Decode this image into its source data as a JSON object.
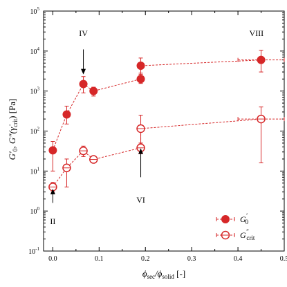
{
  "colors": {
    "series": "#d62728",
    "axis": "#000000"
  },
  "chart_data": {
    "type": "scatter",
    "title": "",
    "xlabel": "ϕsec/ϕsolid [-]",
    "ylabel": "G′0, G″(γ̇crit) [Pa]",
    "xlim": [
      -0.02,
      0.5
    ],
    "ylim": [
      0.1,
      100000
    ],
    "y_scale": "log",
    "grid": false,
    "legend_position": "bottom-right",
    "x_ticks": [
      0.0,
      0.1,
      0.2,
      0.3,
      0.4,
      0.5
    ],
    "x_tick_labels": [
      "0.0",
      "0.1",
      "0.2",
      "0.3",
      "0.4",
      "0.5"
    ],
    "y_ticks": [
      0.1,
      1,
      10,
      100,
      1000,
      10000,
      100000
    ],
    "y_tick_labels": [
      {
        "base": "10",
        "exp": "-1"
      },
      {
        "base": "10",
        "exp": "0"
      },
      {
        "base": "10",
        "exp": "1"
      },
      {
        "base": "10",
        "exp": "2"
      },
      {
        "base": "10",
        "exp": "3"
      },
      {
        "base": "10",
        "exp": "4"
      },
      {
        "base": "10",
        "exp": "5"
      }
    ],
    "series": [
      {
        "name": "G′0",
        "legend_main": "G",
        "legend_sup": "′",
        "legend_sub": "0",
        "marker": "filled-circle",
        "points": [
          {
            "x": 0.0,
            "y": 33,
            "ylo": 10,
            "yhi": 55
          },
          {
            "x": 0.03,
            "y": 260,
            "ylo": 150,
            "yhi": 420
          },
          {
            "x": 0.066,
            "y": 1500,
            "ylo": 900,
            "yhi": 2300
          },
          {
            "x": 0.088,
            "y": 1000,
            "ylo": 750,
            "yhi": 1250
          },
          {
            "x": 0.19,
            "y": 2000,
            "ylo": 1550,
            "yhi": 2600
          },
          {
            "x": 0.19,
            "y": 4300,
            "ylo": 2800,
            "yhi": 6700
          },
          {
            "x": 0.45,
            "y": 6000,
            "ylo": 3000,
            "yhi": 10500,
            "xlo": 0.4,
            "xhi": 0.5
          }
        ]
      },
      {
        "name": "G″crit",
        "legend_main": "G",
        "legend_sup": "″",
        "legend_sub": "crit",
        "marker": "open-circle",
        "points": [
          {
            "x": 0.0,
            "y": 4,
            "ylo": 3,
            "yhi": 5.2
          },
          {
            "x": 0.03,
            "y": 12,
            "ylo": 4,
            "yhi": 20
          },
          {
            "x": 0.066,
            "y": 32,
            "ylo": 23,
            "yhi": 42
          },
          {
            "x": 0.088,
            "y": 19.5,
            "ylo": 16,
            "yhi": 23
          },
          {
            "x": 0.19,
            "y": 38,
            "ylo": 27,
            "yhi": 50
          },
          {
            "x": 0.19,
            "y": 115,
            "ylo": 50,
            "yhi": 250
          },
          {
            "x": 0.45,
            "y": 200,
            "ylo": 16,
            "yhi": 400,
            "xlo": 0.4,
            "xhi": 0.5
          }
        ]
      }
    ],
    "annotations": [
      {
        "text": "IV",
        "x": 0.066,
        "y": 28000,
        "arrow_from": 11000,
        "arrow_to": 2600
      },
      {
        "text": "VI",
        "x": 0.19,
        "y": 1.9,
        "arrow_from": 7,
        "arrow_to": 37
      },
      {
        "text": "II",
        "x": 0.0,
        "y": 0.55,
        "arrow_from": 1.6,
        "arrow_to": 3.6
      },
      {
        "text": "VIII",
        "x": 0.44,
        "y": 28000
      }
    ]
  }
}
